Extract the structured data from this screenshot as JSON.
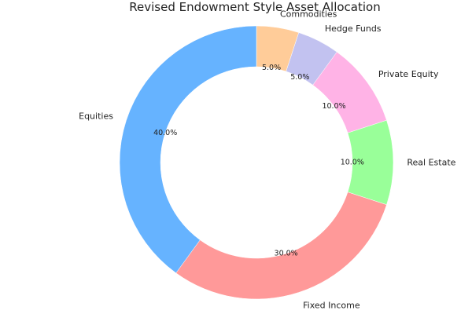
{
  "chart_data": {
    "type": "pie",
    "title": "Revised Endowment Style Asset Allocation",
    "donut": true,
    "start_angle_deg": 90,
    "direction": "clockwise",
    "slices": [
      {
        "label": "Commodities",
        "value": 5.0,
        "pct_text": "5.0%",
        "color": "#ffcc99"
      },
      {
        "label": "Hedge Funds",
        "value": 5.0,
        "pct_text": "5.0%",
        "color": "#c2c2f0"
      },
      {
        "label": "Private Equity",
        "value": 10.0,
        "pct_text": "10.0%",
        "color": "#ffb3e6"
      },
      {
        "label": "Real Estate",
        "value": 10.0,
        "pct_text": "10.0%",
        "color": "#99ff99"
      },
      {
        "label": "Fixed Income",
        "value": 30.0,
        "pct_text": "30.0%",
        "color": "#ff9999"
      },
      {
        "label": "Equities",
        "value": 40.0,
        "pct_text": "40.0%",
        "color": "#66b3ff"
      }
    ]
  }
}
